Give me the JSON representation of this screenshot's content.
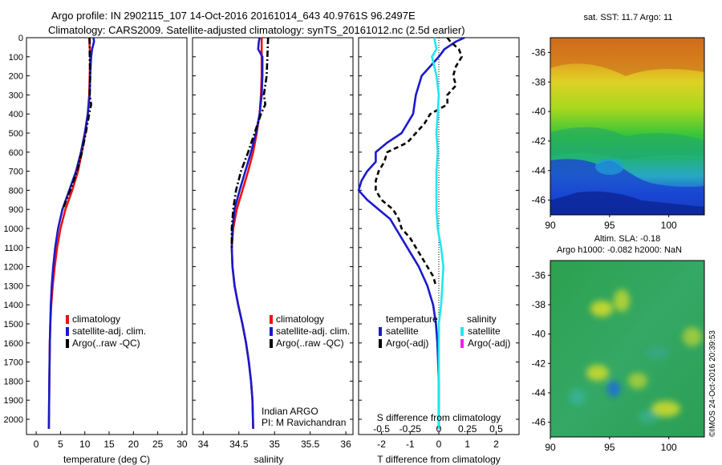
{
  "header": {
    "line1": "Argo profile: IN 2902115_107 14-Oct-2016 20161014_643 40.9761S 96.2497E",
    "line2": "Climatology: CARS2009. Satellite-adjusted climatology: synTS_20161012.nc (2.5d earlier)"
  },
  "colors": {
    "climatology": "#ee1111",
    "satellite": "#1a1acc",
    "argo": "#000000",
    "salinity_satellite": "#22e6ee",
    "salinity_argo": "#ee22ee"
  },
  "depth_axis": {
    "ticks": [
      "0",
      "100",
      "200",
      "300",
      "400",
      "500",
      "600",
      "700",
      "800",
      "900",
      "1000",
      "1100",
      "1200",
      "1300",
      "1400",
      "1500",
      "1600",
      "1700",
      "1800",
      "1900",
      "2000"
    ]
  },
  "chart_data": [
    {
      "type": "line",
      "id": "temperature",
      "xlabel": "temperature (deg C)",
      "xlim": [
        -2,
        31
      ],
      "ylim": [
        2080,
        0
      ],
      "x_ticks": [
        "0",
        "5",
        "10",
        "15",
        "20",
        "25",
        "30"
      ],
      "legend": [
        "climatology",
        "satellite-adj. clim.",
        "Argo(..raw -QC)"
      ],
      "series": [
        {
          "name": "climatology",
          "color": "#ee1111",
          "style": "solid",
          "depth": [
            0,
            50,
            100,
            200,
            300,
            400,
            500,
            600,
            700,
            800,
            900,
            1000,
            1100,
            1200,
            1300,
            1400,
            1500,
            1600,
            1800,
            2050
          ],
          "values": [
            10.9,
            11.0,
            11.1,
            11.0,
            10.9,
            10.6,
            10.1,
            9.4,
            8.6,
            7.4,
            6.0,
            5.0,
            4.3,
            3.8,
            3.4,
            3.1,
            2.9,
            2.8,
            2.7,
            2.6
          ]
        },
        {
          "name": "satellite-adj. clim.",
          "color": "#1a1acc",
          "style": "solid",
          "depth": [
            0,
            20,
            60,
            100,
            200,
            300,
            400,
            500,
            600,
            700,
            800,
            900,
            1000,
            1100,
            1200,
            1300,
            1400,
            1500,
            1600,
            1800,
            2050
          ],
          "values": [
            11.8,
            11.9,
            11.5,
            11.3,
            11.1,
            11.0,
            10.6,
            10.0,
            9.2,
            8.2,
            6.8,
            5.4,
            4.5,
            3.9,
            3.5,
            3.2,
            3.0,
            2.9,
            2.8,
            2.7,
            2.6
          ]
        },
        {
          "name": "Argo(..raw -QC)",
          "color": "#000000",
          "style": "dashdot",
          "depth": [
            0,
            100,
            200,
            300,
            350,
            400,
            500,
            600,
            700,
            800,
            850,
            900
          ],
          "values": [
            11.0,
            11.0,
            11.1,
            11.0,
            11.3,
            10.9,
            10.2,
            9.4,
            8.4,
            7.0,
            6.2,
            5.5
          ]
        }
      ]
    },
    {
      "type": "line",
      "id": "salinity",
      "xlabel": "salinity",
      "xlim": [
        33.85,
        36.1
      ],
      "ylim": [
        2080,
        0
      ],
      "x_ticks": [
        "34",
        "34.5",
        "35",
        "35.5",
        "36"
      ],
      "legend": [
        "climatology",
        "satellite-adj. clim.",
        "Argo(..raw -QC)"
      ],
      "annotation": [
        "Indian ARGO",
        "PI: M Ravichandran"
      ],
      "series": [
        {
          "name": "climatology",
          "color": "#ee1111",
          "style": "solid",
          "depth": [
            0,
            100,
            200,
            300,
            400,
            500,
            600,
            700,
            800,
            900,
            1000,
            1100,
            1200,
            1300,
            1400,
            1500,
            1600,
            1700,
            1800,
            1900,
            2050
          ],
          "values": [
            34.82,
            34.82,
            34.82,
            34.81,
            34.79,
            34.75,
            34.7,
            34.63,
            34.55,
            34.47,
            34.42,
            34.4,
            34.41,
            34.44,
            34.49,
            34.55,
            34.6,
            34.64,
            34.67,
            34.69,
            34.7
          ]
        },
        {
          "name": "satellite-adj. clim.",
          "color": "#1a1acc",
          "style": "solid",
          "depth": [
            0,
            20,
            60,
            100,
            200,
            300,
            400,
            500,
            600,
            700,
            800,
            900,
            1000,
            1100,
            1200,
            1300,
            1400,
            1500,
            1600,
            1700,
            1800,
            1900,
            2050
          ],
          "values": [
            34.79,
            34.78,
            34.77,
            34.83,
            34.83,
            34.82,
            34.79,
            34.74,
            34.67,
            34.59,
            34.51,
            34.44,
            34.41,
            34.4,
            34.41,
            34.44,
            34.49,
            34.55,
            34.6,
            34.64,
            34.67,
            34.69,
            34.7
          ]
        },
        {
          "name": "Argo(..raw -QC)",
          "color": "#000000",
          "style": "dashdot",
          "depth": [
            0,
            100,
            200,
            300,
            350,
            400,
            500,
            600,
            700,
            800,
            900,
            1000,
            1100
          ],
          "values": [
            34.91,
            34.9,
            34.89,
            34.85,
            34.87,
            34.81,
            34.72,
            34.63,
            34.53,
            34.46,
            34.42,
            34.4,
            34.4
          ]
        }
      ]
    },
    {
      "type": "line",
      "id": "difference",
      "xlabel": "T difference from climatology",
      "xlabel_top": "S difference from climatology",
      "xlim": [
        -2.8,
        2.8
      ],
      "ylim": [
        2080,
        0
      ],
      "x_ticks": [
        "-2",
        "-1",
        "0",
        "1",
        "2"
      ],
      "top_ticks": [
        "-0.5",
        "-0.25",
        "0",
        "0.25",
        "0.5"
      ],
      "legend": {
        "temperature": {
          "title": "temperature",
          "items": [
            "satellite",
            "Argo(-adj)"
          ]
        },
        "salinity": {
          "title": "salinity",
          "items": [
            "satellite",
            "Argo(-adj)"
          ]
        }
      },
      "series": [
        {
          "name": "satellite",
          "color": "#1a1acc",
          "style": "solid",
          "depth": [
            0,
            20,
            60,
            100,
            150,
            200,
            300,
            400,
            500,
            550,
            600,
            650,
            700,
            750,
            800,
            850,
            900,
            950,
            1000,
            1100,
            1200,
            1300,
            1400,
            1500,
            1600,
            1800,
            2050
          ],
          "values": [
            0.9,
            0.6,
            0.2,
            0.0,
            -0.3,
            -0.6,
            -0.8,
            -0.9,
            -1.3,
            -1.8,
            -2.2,
            -2.2,
            -2.5,
            -2.7,
            -2.8,
            -2.5,
            -2.1,
            -1.7,
            -1.5,
            -1.1,
            -0.7,
            -0.4,
            -0.2,
            -0.1,
            -0.05,
            0,
            0
          ]
        },
        {
          "name": "Argo(-adj)",
          "color": "#000000",
          "style": "dashed",
          "depth": [
            0,
            20,
            60,
            100,
            150,
            200,
            250,
            300,
            350,
            400,
            450,
            500,
            550,
            600,
            650,
            700,
            750,
            800,
            850,
            900,
            950,
            1000,
            1050,
            1100,
            1150,
            1200,
            1250,
            1300
          ],
          "values": [
            0.3,
            0.4,
            0.7,
            0.8,
            0.6,
            0.5,
            0.6,
            0.3,
            0.3,
            -0.3,
            -0.5,
            -0.8,
            -1.1,
            -1.8,
            -1.9,
            -2.1,
            -2.2,
            -2.2,
            -2.0,
            -1.6,
            -1.4,
            -1.3,
            -1.0,
            -0.8,
            -0.6,
            -0.4,
            -0.2,
            -0.1
          ]
        },
        {
          "name": "satellite",
          "color": "#22e6ee",
          "style": "solid",
          "depth": [
            0,
            60,
            100,
            150,
            200,
            300,
            400,
            500,
            600,
            700,
            800,
            900,
            1000,
            1100,
            1200,
            1300,
            1400,
            1500,
            1600,
            1800,
            2050
          ],
          "values": [
            -0.04,
            -0.02,
            -0.06,
            -0.04,
            -0.02,
            0.0,
            -0.01,
            -0.02,
            -0.01,
            -0.02,
            -0.02,
            -0.02,
            -0.01,
            0.02,
            0.04,
            0.03,
            0.02,
            0.0,
            0.0,
            0.0,
            0.0
          ]
        }
      ]
    },
    {
      "type": "heatmap",
      "id": "sst-map",
      "title": "sat. SST: 11.7 Argo: 11",
      "xlim": [
        90,
        103
      ],
      "ylim": [
        -47,
        -35
      ],
      "x_ticks": [
        "90",
        "95",
        "100"
      ],
      "y_ticks": [
        "-36",
        "-38",
        "-40",
        "-42",
        "-44",
        "-46"
      ]
    },
    {
      "type": "heatmap",
      "id": "sla-map",
      "title": "Altim. SLA: -0.18",
      "subtitle": "Argo h1000: -0.082 h2000: NaN",
      "xlim": [
        90,
        103
      ],
      "ylim": [
        -47,
        -35
      ],
      "x_ticks": [
        "90",
        "95",
        "100"
      ],
      "y_ticks": [
        "-36",
        "-38",
        "-40",
        "-42",
        "-44",
        "-46"
      ]
    }
  ],
  "footer_stamp": "©IMOS 24-Oct-2016 20:39:53"
}
